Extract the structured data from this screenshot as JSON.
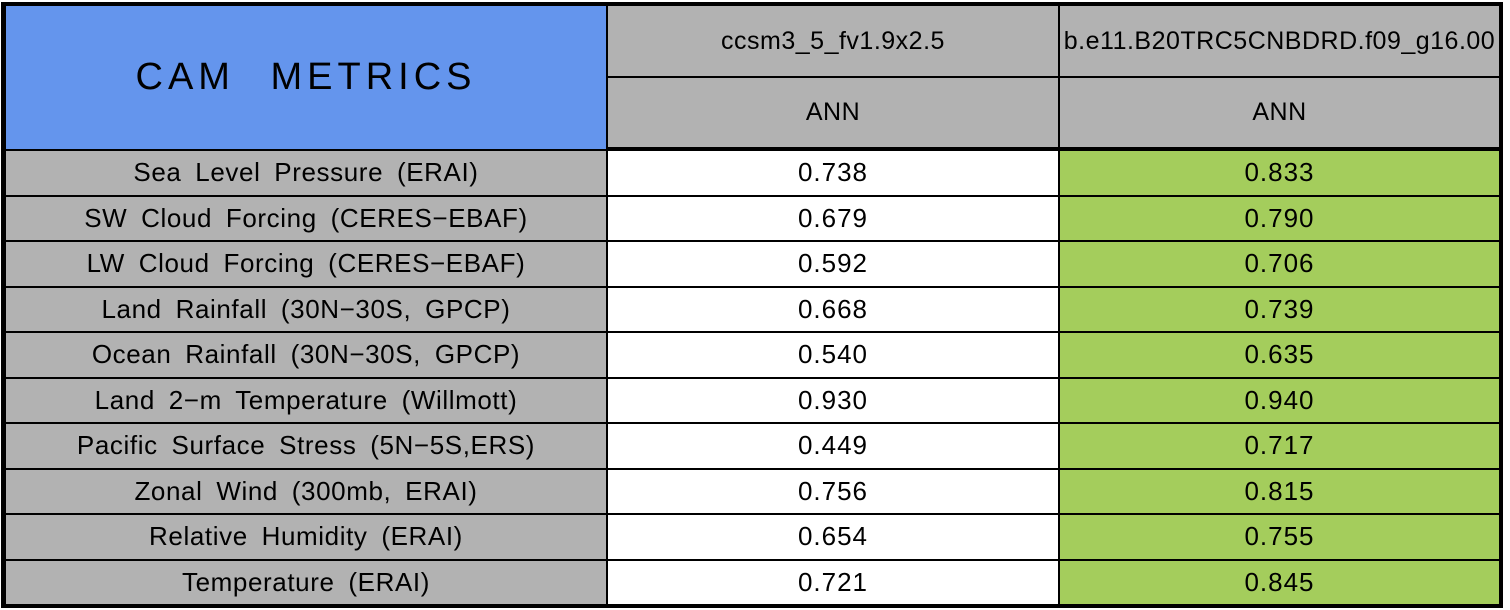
{
  "title": "CAM METRICS",
  "header": {
    "models": [
      "ccsm3_5_fv1.9x2.5",
      "b.e11.B20TRC5CNBDRD.f09_g16.00"
    ],
    "seasons": [
      "ANN",
      "ANN"
    ]
  },
  "rows": [
    {
      "metric": "Sea Level Pressure (ERAI)",
      "values": [
        "0.738",
        "0.833"
      ]
    },
    {
      "metric": "SW Cloud Forcing (CERES−EBAF)",
      "values": [
        "0.679",
        "0.790"
      ]
    },
    {
      "metric": "LW Cloud Forcing (CERES−EBAF)",
      "values": [
        "0.592",
        "0.706"
      ]
    },
    {
      "metric": "Land Rainfall (30N−30S, GPCP)",
      "values": [
        "0.668",
        "0.739"
      ]
    },
    {
      "metric": "Ocean Rainfall (30N−30S, GPCP)",
      "values": [
        "0.540",
        "0.635"
      ]
    },
    {
      "metric": "Land 2−m Temperature (Willmott)",
      "values": [
        "0.930",
        "0.940"
      ]
    },
    {
      "metric": "Pacific Surface Stress (5N−5S,ERS)",
      "values": [
        "0.449",
        "0.717"
      ]
    },
    {
      "metric": "Zonal Wind (300mb, ERAI)",
      "values": [
        "0.756",
        "0.815"
      ]
    },
    {
      "metric": "Relative Humidity (ERAI)",
      "values": [
        "0.654",
        "0.755"
      ]
    },
    {
      "metric": "Temperature (ERAI)",
      "values": [
        "0.721",
        "0.845"
      ]
    }
  ],
  "colors": {
    "title_blue": "#6495ED",
    "header_gray": "#B2B2B2",
    "value_white": "#FFFFFF",
    "value_green": "#A4CD5C",
    "grid_black": "#000000"
  },
  "chart_data": {
    "type": "table",
    "title": "CAM METRICS",
    "columns": [
      {
        "model": "ccsm3_5_fv1.9x2.5",
        "season": "ANN"
      },
      {
        "model": "b.e11.B20TRC5CNBDRD.f09_g16.00",
        "season": "ANN"
      }
    ],
    "categories": [
      "Sea Level Pressure (ERAI)",
      "SW Cloud Forcing (CERES-EBAF)",
      "LW Cloud Forcing (CERES-EBAF)",
      "Land Rainfall (30N-30S, GPCP)",
      "Ocean Rainfall (30N-30S, GPCP)",
      "Land 2-m Temperature (Willmott)",
      "Pacific Surface Stress (5N-5S,ERS)",
      "Zonal Wind (300mb, ERAI)",
      "Relative Humidity (ERAI)",
      "Temperature (ERAI)"
    ],
    "series": [
      {
        "name": "ccsm3_5_fv1.9x2.5 ANN",
        "values": [
          0.738,
          0.679,
          0.592,
          0.668,
          0.54,
          0.93,
          0.449,
          0.756,
          0.654,
          0.721
        ]
      },
      {
        "name": "b.e11.B20TRC5CNBDRD.f09_g16.00 ANN",
        "values": [
          0.833,
          0.79,
          0.706,
          0.739,
          0.635,
          0.94,
          0.717,
          0.815,
          0.755,
          0.845
        ]
      }
    ],
    "highlight": "second column cells shaded green (better score); first column white"
  }
}
